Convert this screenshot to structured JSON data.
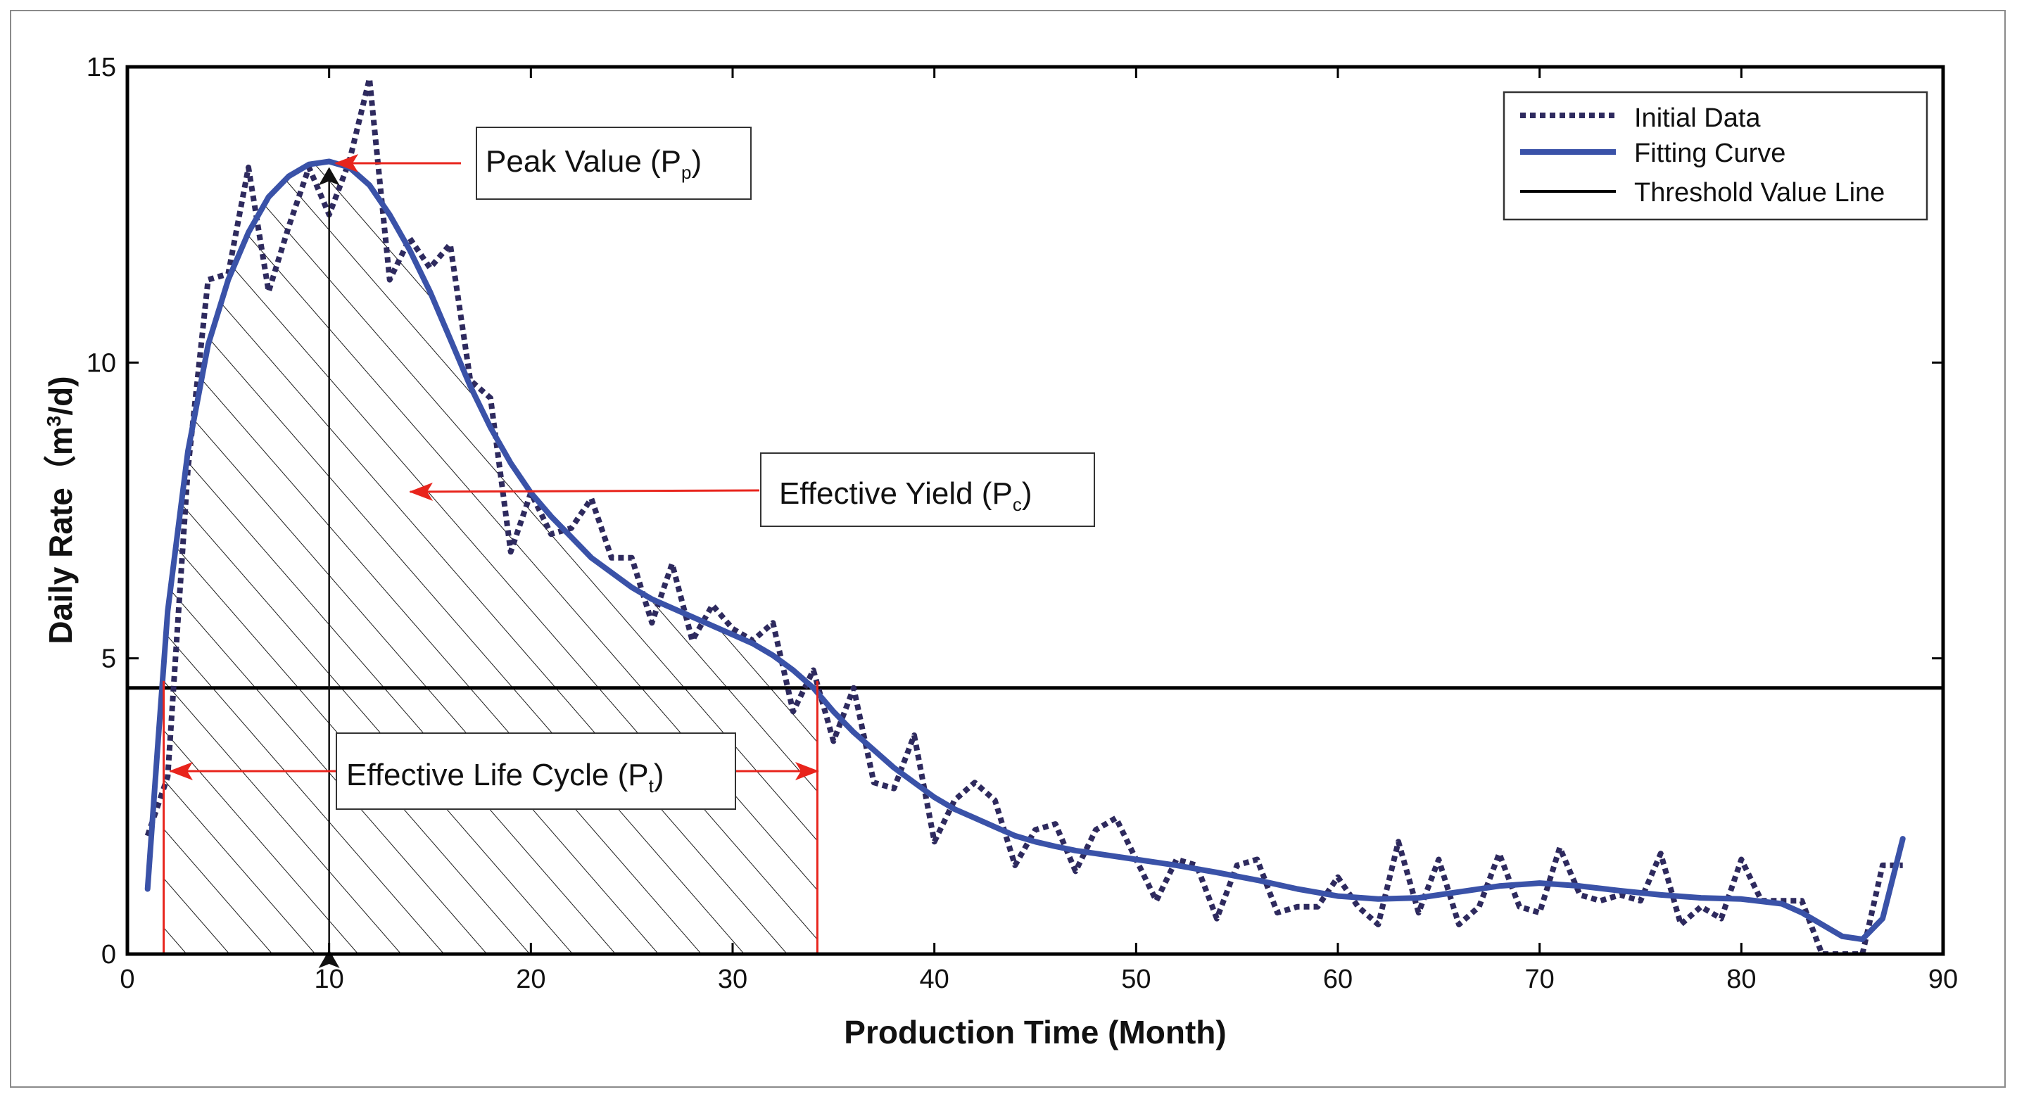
{
  "chart_data": {
    "type": "line",
    "xlabel": "Production Time (Month)",
    "ylabel": "Daily Rate（m³/d)",
    "ylabel_parts": {
      "main": "Daily Rate（m",
      "sup": "3",
      "tail": "/d)"
    },
    "xlim": [
      0,
      90
    ],
    "ylim": [
      0,
      15
    ],
    "x_ticks": [
      0,
      10,
      20,
      30,
      40,
      50,
      60,
      70,
      80,
      90
    ],
    "y_ticks": [
      0,
      5,
      10,
      15
    ],
    "x_tick_labels": [
      "0",
      "10",
      "20",
      "30",
      "40",
      "50",
      "60",
      "70",
      "80",
      "90"
    ],
    "y_tick_labels": [
      "0",
      "5",
      "10",
      "15"
    ],
    "grid": false,
    "legend_position": "top-right",
    "threshold": 4.5,
    "effective_interval": [
      1.8,
      34.2
    ],
    "peak": {
      "x": 10,
      "y": 13.4
    },
    "series": [
      {
        "name": "Initial Data",
        "style": "dotted",
        "color": "#2e2a5e",
        "points": [
          [
            1,
            2.0
          ],
          [
            2,
            3.0
          ],
          [
            3,
            8.2
          ],
          [
            4,
            11.4
          ],
          [
            5,
            11.5
          ],
          [
            6,
            13.3
          ],
          [
            7,
            11.2
          ],
          [
            8,
            12.3
          ],
          [
            9,
            13.3
          ],
          [
            10,
            12.5
          ],
          [
            11,
            13.4
          ],
          [
            12,
            14.8
          ],
          [
            13,
            11.4
          ],
          [
            14,
            12.1
          ],
          [
            15,
            11.6
          ],
          [
            16,
            12.0
          ],
          [
            17,
            9.7
          ],
          [
            18,
            9.4
          ],
          [
            19,
            6.8
          ],
          [
            20,
            7.8
          ],
          [
            21,
            7.1
          ],
          [
            22,
            7.2
          ],
          [
            23,
            7.7
          ],
          [
            24,
            6.7
          ],
          [
            25,
            6.7
          ],
          [
            26,
            5.6
          ],
          [
            27,
            6.6
          ],
          [
            28,
            5.3
          ],
          [
            29,
            5.9
          ],
          [
            30,
            5.5
          ],
          [
            31,
            5.3
          ],
          [
            32,
            5.6
          ],
          [
            33,
            4.1
          ],
          [
            34,
            4.8
          ],
          [
            35,
            3.6
          ],
          [
            36,
            4.5
          ],
          [
            37,
            2.9
          ],
          [
            38,
            2.8
          ],
          [
            39,
            3.7
          ],
          [
            40,
            1.9
          ],
          [
            41,
            2.6
          ],
          [
            42,
            2.9
          ],
          [
            43,
            2.6
          ],
          [
            44,
            1.5
          ],
          [
            45,
            2.1
          ],
          [
            46,
            2.2
          ],
          [
            47,
            1.4
          ],
          [
            48,
            2.1
          ],
          [
            49,
            2.3
          ],
          [
            50,
            1.6
          ],
          [
            51,
            0.9
          ],
          [
            52,
            1.6
          ],
          [
            53,
            1.5
          ],
          [
            54,
            0.6
          ],
          [
            55,
            1.5
          ],
          [
            56,
            1.6
          ],
          [
            57,
            0.7
          ],
          [
            58,
            0.8
          ],
          [
            59,
            0.8
          ],
          [
            60,
            1.3
          ],
          [
            61,
            0.8
          ],
          [
            62,
            0.5
          ],
          [
            63,
            1.9
          ],
          [
            64,
            0.7
          ],
          [
            65,
            1.6
          ],
          [
            66,
            0.5
          ],
          [
            67,
            0.8
          ],
          [
            68,
            1.7
          ],
          [
            69,
            0.8
          ],
          [
            70,
            0.7
          ],
          [
            71,
            1.8
          ],
          [
            72,
            1.0
          ],
          [
            73,
            0.9
          ],
          [
            74,
            1.0
          ],
          [
            75,
            0.9
          ],
          [
            76,
            1.7
          ],
          [
            77,
            0.5
          ],
          [
            78,
            0.8
          ],
          [
            79,
            0.6
          ],
          [
            80,
            1.6
          ],
          [
            81,
            0.9
          ],
          [
            82,
            0.9
          ],
          [
            83,
            0.9
          ],
          [
            84,
            0.0
          ],
          [
            85,
            0.0
          ],
          [
            86,
            0.0
          ],
          [
            87,
            1.5
          ],
          [
            88,
            1.5
          ]
        ]
      },
      {
        "name": "Fitting Curve",
        "style": "solid",
        "color": "#3a52a8",
        "points": [
          [
            1,
            1.1
          ],
          [
            1.5,
            3.5
          ],
          [
            2,
            5.8
          ],
          [
            3,
            8.5
          ],
          [
            4,
            10.3
          ],
          [
            5,
            11.4
          ],
          [
            6,
            12.2
          ],
          [
            7,
            12.8
          ],
          [
            8,
            13.15
          ],
          [
            9,
            13.35
          ],
          [
            10,
            13.4
          ],
          [
            11,
            13.3
          ],
          [
            12,
            13.0
          ],
          [
            13,
            12.5
          ],
          [
            14,
            11.9
          ],
          [
            15,
            11.2
          ],
          [
            16,
            10.4
          ],
          [
            17,
            9.6
          ],
          [
            18,
            8.9
          ],
          [
            19,
            8.3
          ],
          [
            20,
            7.8
          ],
          [
            21,
            7.4
          ],
          [
            22,
            7.05
          ],
          [
            23,
            6.7
          ],
          [
            24,
            6.45
          ],
          [
            25,
            6.2
          ],
          [
            26,
            6.0
          ],
          [
            27,
            5.85
          ],
          [
            28,
            5.7
          ],
          [
            29,
            5.55
          ],
          [
            30,
            5.4
          ],
          [
            31,
            5.25
          ],
          [
            32,
            5.05
          ],
          [
            33,
            4.8
          ],
          [
            34,
            4.5
          ],
          [
            35,
            4.1
          ],
          [
            36,
            3.75
          ],
          [
            37,
            3.45
          ],
          [
            38,
            3.15
          ],
          [
            39,
            2.9
          ],
          [
            40,
            2.65
          ],
          [
            41,
            2.45
          ],
          [
            42,
            2.3
          ],
          [
            43,
            2.15
          ],
          [
            44,
            2.0
          ],
          [
            45,
            1.9
          ],
          [
            46,
            1.82
          ],
          [
            47,
            1.75
          ],
          [
            48,
            1.7
          ],
          [
            49,
            1.65
          ],
          [
            50,
            1.6
          ],
          [
            52,
            1.5
          ],
          [
            54,
            1.38
          ],
          [
            56,
            1.25
          ],
          [
            58,
            1.1
          ],
          [
            60,
            0.98
          ],
          [
            62,
            0.93
          ],
          [
            64,
            0.95
          ],
          [
            66,
            1.05
          ],
          [
            68,
            1.15
          ],
          [
            70,
            1.2
          ],
          [
            72,
            1.15
          ],
          [
            74,
            1.07
          ],
          [
            76,
            1.0
          ],
          [
            78,
            0.95
          ],
          [
            80,
            0.93
          ],
          [
            82,
            0.85
          ],
          [
            83,
            0.7
          ],
          [
            84,
            0.5
          ],
          [
            85,
            0.3
          ],
          [
            86,
            0.25
          ],
          [
            87,
            0.6
          ],
          [
            88,
            1.95
          ]
        ]
      },
      {
        "name": "Threshold Value Line",
        "style": "solid",
        "color": "#000000",
        "points": [
          [
            0,
            4.5
          ],
          [
            90,
            4.5
          ]
        ]
      }
    ],
    "annotations": [
      {
        "key": "peak",
        "text": "Peak Value (P",
        "sub": "p",
        "tail": ")"
      },
      {
        "key": "yield",
        "text": "Effective Yield (P",
        "sub": "c",
        "tail": ")"
      },
      {
        "key": "life",
        "text": "Effective Life Cycle (P",
        "sub": "t",
        "tail": ")"
      }
    ]
  },
  "colors": {
    "initial": "#2e2a5e",
    "fitting": "#3a52a8",
    "threshold": "#000000",
    "annotation": "#e8241c",
    "hatch": "#1a1a1a"
  }
}
